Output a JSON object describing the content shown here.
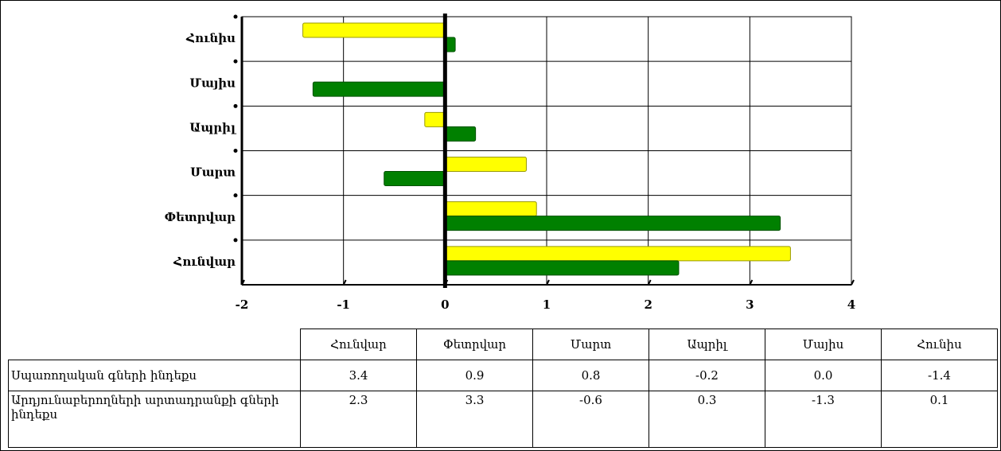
{
  "chart_data": {
    "type": "bar",
    "orientation": "horizontal",
    "categories": [
      "Հունվար",
      "Փետրվար",
      "Մարտ",
      "Ապրիլ",
      "Մայիս",
      "Հունիս"
    ],
    "series": [
      {
        "name": "Սպառողական գների ինդեքս",
        "color": "#ffff00",
        "values": [
          3.4,
          0.9,
          0.8,
          -0.2,
          0.0,
          -1.4
        ],
        "value_labels": [
          "3.4",
          "0.9",
          "0.8",
          "-0.2",
          "0.0",
          "-1.4"
        ]
      },
      {
        "name": "Արդյունաբերողների արտադրանքի գների ինդեքս",
        "color": "#008000",
        "values": [
          2.3,
          3.3,
          -0.6,
          0.3,
          -1.3,
          0.1
        ],
        "value_labels": [
          "2.3",
          "3.3",
          "-0.6",
          "0.3",
          "-1.3",
          "0.1"
        ]
      }
    ],
    "xlim": [
      -2,
      4
    ],
    "xticks": [
      -2,
      -1,
      0,
      1,
      2,
      3,
      4
    ],
    "grid": true
  }
}
